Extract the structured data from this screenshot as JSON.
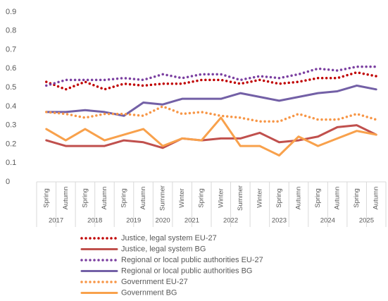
{
  "chart_data": {
    "type": "line",
    "categories": [
      "Spring",
      "Autumn",
      "Spring",
      "Autumn",
      "Spring",
      "Autumn",
      "Summer",
      "Winter",
      "Spring",
      "Winter",
      "Summer",
      "Winter",
      "Spring",
      "Autumn",
      "Spring",
      "Autumn",
      "Spring",
      "Autumn"
    ],
    "category_groups": [
      {
        "name": "2017",
        "count": 2
      },
      {
        "name": "2018",
        "count": 2
      },
      {
        "name": "2019",
        "count": 2
      },
      {
        "name": "2020",
        "count": 1
      },
      {
        "name": "2021",
        "count": 2
      },
      {
        "name": "2022",
        "count": 2
      },
      {
        "name": "2023",
        "count": 3
      },
      {
        "name": "2024",
        "count": 2
      },
      {
        "name": "2025",
        "count": 2
      }
    ],
    "ylim": [
      0,
      0.9
    ],
    "yticks": [
      0,
      0.1,
      0.2,
      0.3,
      0.4,
      0.5,
      0.6,
      0.7,
      0.8,
      0.9
    ],
    "series": [
      {
        "name": "Justice,  legal system EU-27",
        "color": "#c00000",
        "style": "dotted",
        "values": [
          0.53,
          0.49,
          0.53,
          0.49,
          0.52,
          0.51,
          0.52,
          0.52,
          0.54,
          0.54,
          0.52,
          0.54,
          0.52,
          0.53,
          0.55,
          0.55,
          0.58,
          0.56
        ]
      },
      {
        "name": "Justice,  legal system BG",
        "color": "#c0504d",
        "style": "solid",
        "values": [
          0.22,
          0.19,
          0.19,
          0.19,
          0.22,
          0.21,
          0.18,
          0.23,
          0.22,
          0.23,
          0.23,
          0.26,
          0.21,
          0.22,
          0.24,
          0.29,
          0.3,
          0.25
        ]
      },
      {
        "name": "Regional or local public authorities EU-27",
        "color": "#7b3fa0",
        "style": "dotted",
        "values": [
          0.51,
          0.54,
          0.54,
          0.54,
          0.55,
          0.54,
          0.57,
          0.55,
          0.57,
          0.57,
          0.54,
          0.56,
          0.55,
          0.57,
          0.6,
          0.59,
          0.61,
          0.61
        ]
      },
      {
        "name": "Regional or local public authorities BG",
        "color": "#7360a6",
        "style": "solid",
        "values": [
          0.37,
          0.37,
          0.38,
          0.37,
          0.35,
          0.42,
          0.41,
          0.44,
          0.44,
          0.44,
          0.47,
          0.45,
          0.43,
          0.45,
          0.47,
          0.48,
          0.51,
          0.49
        ]
      },
      {
        "name": "Government  EU-27",
        "color": "#f79646",
        "style": "dotted",
        "values": [
          0.37,
          0.36,
          0.34,
          0.36,
          0.36,
          0.35,
          0.4,
          0.36,
          0.37,
          0.35,
          0.34,
          0.32,
          0.32,
          0.36,
          0.33,
          0.33,
          0.36,
          0.33
        ]
      },
      {
        "name": "Government  BG",
        "color": "#f8a14c",
        "style": "solid",
        "values": [
          0.28,
          0.22,
          0.28,
          0.22,
          0.25,
          0.28,
          0.19,
          0.23,
          0.22,
          0.34,
          0.19,
          0.19,
          0.14,
          0.24,
          0.19,
          0.23,
          0.27,
          0.25
        ]
      }
    ]
  }
}
